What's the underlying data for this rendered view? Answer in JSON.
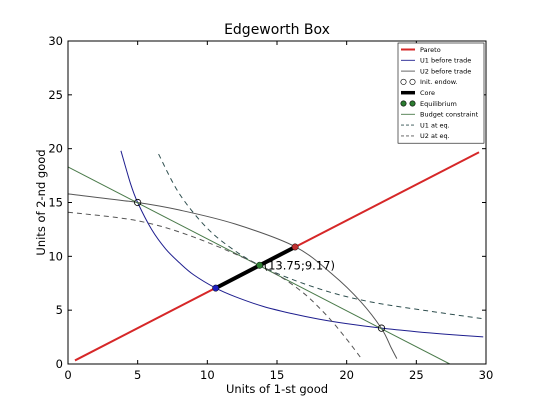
{
  "chart_data": {
    "type": "line",
    "title": "Edgeworth Box",
    "xlabel": "Units of 1-st good",
    "ylabel": "Units of 2-nd good",
    "xlim": [
      0,
      30
    ],
    "ylim": [
      0,
      30
    ],
    "xticks": [
      0,
      5,
      10,
      15,
      20,
      25,
      30
    ],
    "yticks": [
      0,
      5,
      10,
      15,
      20,
      25,
      30
    ],
    "grid": false,
    "legend_position": "top-right",
    "colors": {
      "pareto": "#d62728",
      "u1": "#1f1f8f",
      "u2": "#555555",
      "core": "#000000",
      "equilibrium": "#2e7d32",
      "budget": "#4a7a4a",
      "dashed": "#2f4f4f"
    },
    "legend": [
      {
        "label": "Pareto",
        "kind": "line-thick",
        "color": "#d62728"
      },
      {
        "label": "U1 before trade",
        "kind": "line",
        "color": "#1f1f8f"
      },
      {
        "label": "U2 before trade",
        "kind": "line",
        "color": "#555555"
      },
      {
        "label": "Init. endow.",
        "kind": "hollow-dots",
        "color": "#000000"
      },
      {
        "label": "Core",
        "kind": "line-heavy",
        "color": "#000000"
      },
      {
        "label": "Equilibrium",
        "kind": "filled-dots",
        "color": "#2e7d32"
      },
      {
        "label": "Budget constraint",
        "kind": "line",
        "color": "#4a7a4a"
      },
      {
        "label": "U1 at eq.",
        "kind": "dashed",
        "color": "#2f4f4f"
      },
      {
        "label": "U2 at eq.",
        "kind": "dashed",
        "color": "#555555"
      }
    ],
    "series": [
      {
        "name": "Pareto",
        "style": "thick",
        "color": "#d62728",
        "x": [
          0.5,
          29.5
        ],
        "y": [
          0.33,
          19.67
        ]
      },
      {
        "name": "U1 before trade",
        "style": "solid",
        "color": "#1f1f8f",
        "x": [
          3.8,
          4.5,
          5,
          6,
          7,
          8,
          9,
          10.6,
          12,
          14,
          16,
          18,
          20,
          22.5,
          25,
          27,
          29.8
        ],
        "y": [
          19.8,
          16.7,
          15.0,
          12.5,
          10.7,
          9.4,
          8.3,
          7.05,
          6.25,
          5.35,
          4.7,
          4.17,
          3.75,
          3.33,
          3.0,
          2.78,
          2.52
        ]
      },
      {
        "name": "U2 before trade",
        "style": "solid",
        "color": "#555555",
        "x": [
          0,
          5,
          8,
          12,
          16.3,
          19,
          21,
          22.5,
          23.2,
          23.6
        ],
        "y": [
          15.8,
          15.0,
          14.3,
          13.0,
          10.9,
          8.3,
          5.8,
          3.3,
          1.5,
          0.5
        ]
      },
      {
        "name": "Budget constraint",
        "style": "solid",
        "color": "#4a7a4a",
        "x": [
          0,
          27.4
        ],
        "y": [
          18.3,
          0
        ]
      },
      {
        "name": "U1 at eq.",
        "style": "dashed",
        "color": "#2f4f4f",
        "x": [
          6.5,
          8,
          10,
          12,
          13.75,
          16,
          19,
          22,
          26,
          29.8
        ],
        "y": [
          19.5,
          15.8,
          12.6,
          10.5,
          9.17,
          7.9,
          6.6,
          5.7,
          4.9,
          4.2
        ]
      },
      {
        "name": "U2 at eq.",
        "style": "dashed",
        "color": "#555555",
        "x": [
          0,
          5,
          9,
          13.75,
          16.5,
          18.5,
          20,
          21
        ],
        "y": [
          14.1,
          13.3,
          11.8,
          9.17,
          7.0,
          4.6,
          2.3,
          0.6
        ]
      }
    ],
    "core": {
      "x": [
        10.6,
        16.3
      ],
      "y": [
        7.05,
        10.87
      ]
    },
    "points": [
      {
        "name": "init-endowment",
        "x": 5,
        "y": 15,
        "style": "hollow",
        "color": "#000000"
      },
      {
        "name": "init-endowment",
        "x": 22.5,
        "y": 3.33,
        "style": "hollow",
        "color": "#000000"
      },
      {
        "name": "core-end-u1",
        "x": 10.6,
        "y": 7.05,
        "style": "filled",
        "color": "#1f1fbf"
      },
      {
        "name": "core-end-u2",
        "x": 16.3,
        "y": 10.87,
        "style": "filled",
        "color": "#c03030"
      },
      {
        "name": "equilibrium",
        "x": 13.75,
        "y": 9.17,
        "style": "filled",
        "color": "#2e7d32"
      }
    ],
    "annotation": {
      "text": "(13.75;9.17)",
      "x": 13.75,
      "y": 9.17
    }
  }
}
